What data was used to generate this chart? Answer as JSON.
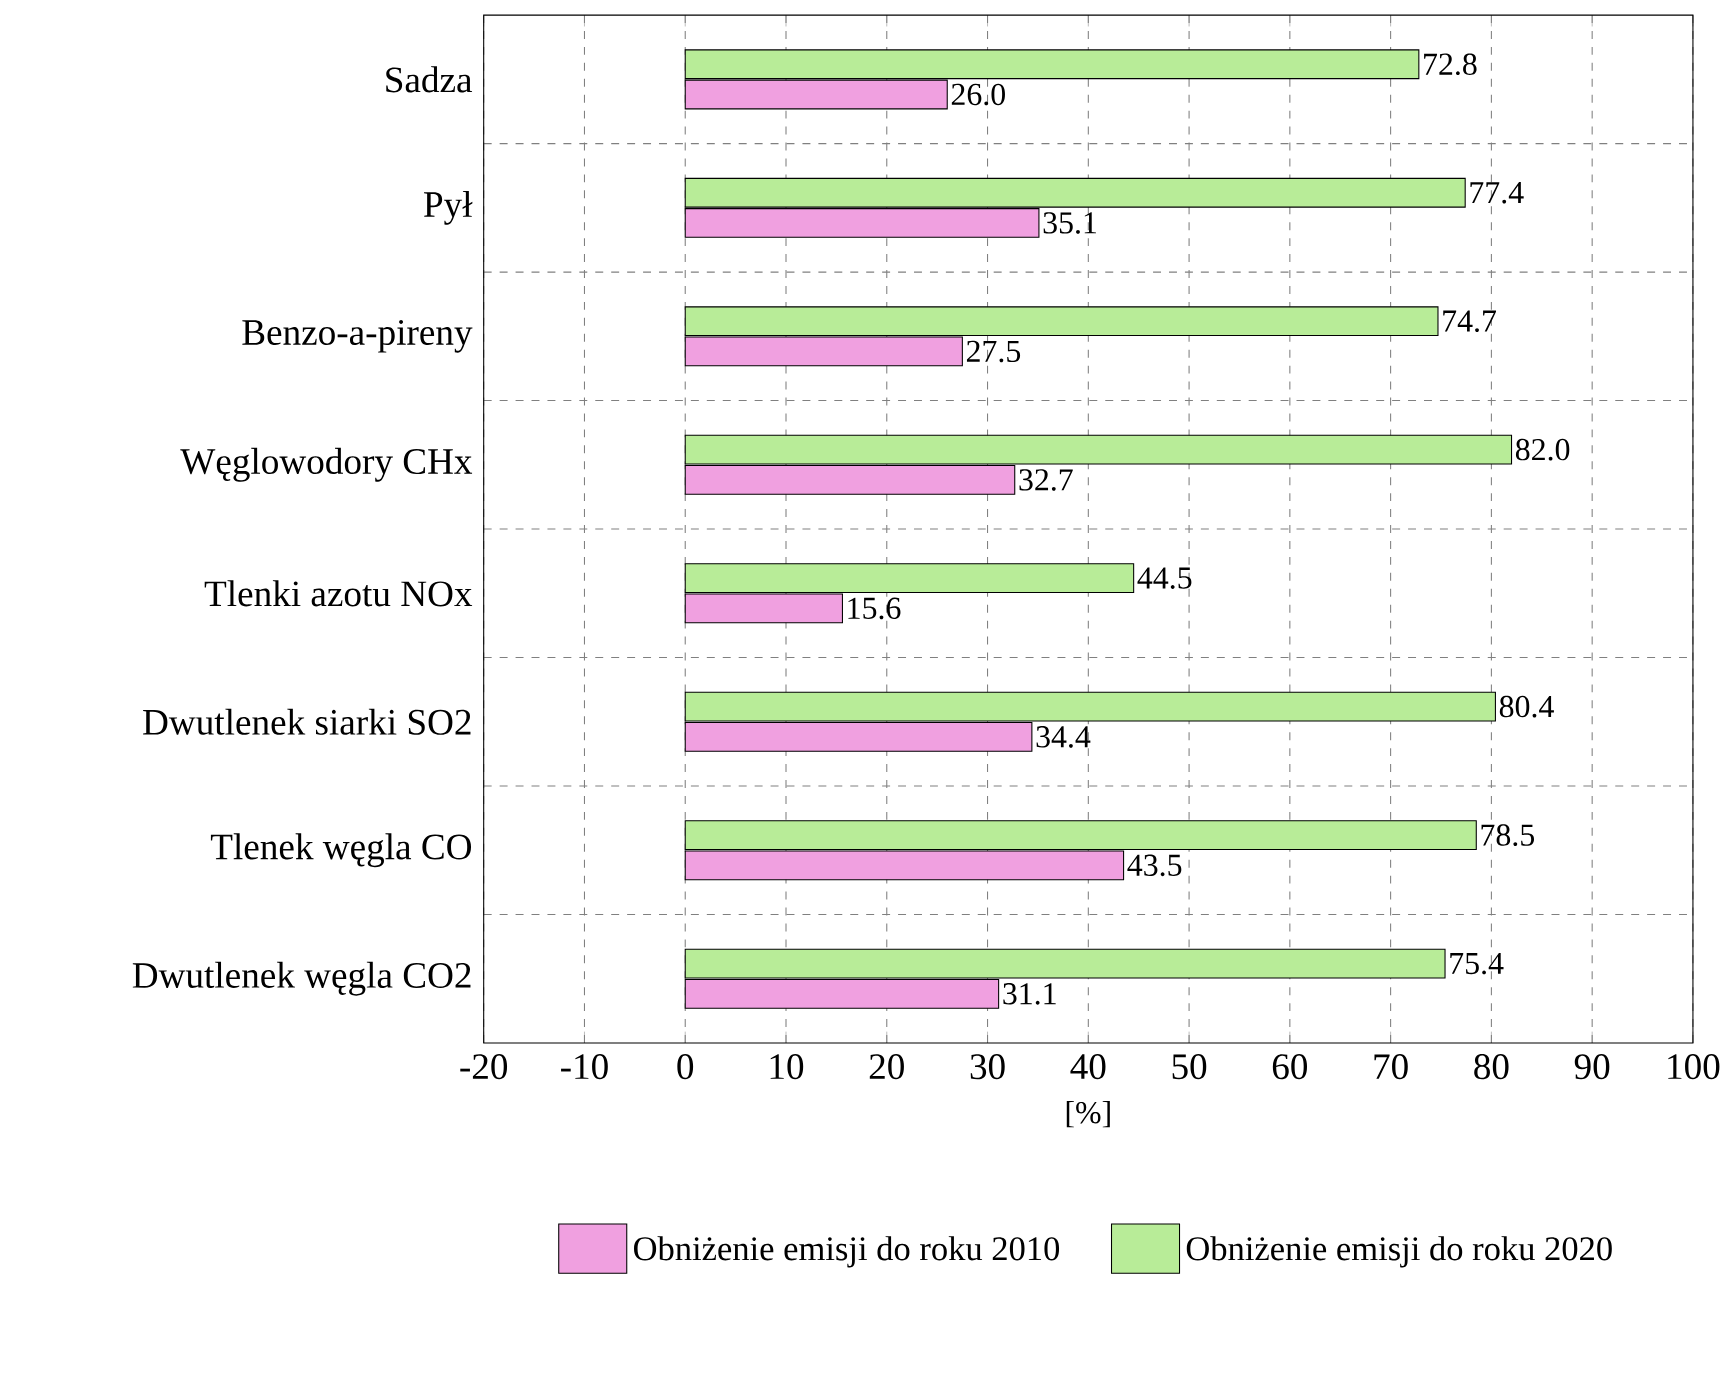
{
  "chart_data": {
    "type": "bar",
    "orientation": "horizontal",
    "xlabel": "[%]",
    "categories": [
      "Sadza",
      "Pył",
      "Benzo-a-pireny",
      "Węglowodory CHx",
      "Tlenki azotu NOx",
      "Dwutlenek siarki SO2",
      "Tlenek węgla CO",
      "Dwutlenek węgla CO2"
    ],
    "series": [
      {
        "name": "Obniżenie emisji do roku 2010",
        "color": "#f0a0e0",
        "values": [
          26.0,
          35.1,
          27.5,
          32.7,
          15.6,
          34.4,
          43.5,
          31.1
        ],
        "value_labels": [
          "26.0",
          "35.1",
          "27.5",
          "32.7",
          "15.6",
          "34.4",
          "43.5",
          "31.1"
        ]
      },
      {
        "name": "Obniżenie emisji do roku 2020",
        "color": "#b8ec98",
        "values": [
          72.8,
          77.4,
          74.7,
          82.0,
          44.5,
          80.4,
          78.5,
          75.4
        ],
        "value_labels": [
          "72.8",
          "77.4",
          "74.7",
          "82.0",
          "44.5",
          "80.4",
          "78.5",
          "75.4"
        ]
      }
    ],
    "xlim": [
      -20,
      100
    ],
    "xticks": [
      -20,
      -10,
      0,
      10,
      20,
      30,
      40,
      50,
      60,
      70,
      80,
      90,
      100
    ],
    "grid": true,
    "legend": "bottom"
  }
}
